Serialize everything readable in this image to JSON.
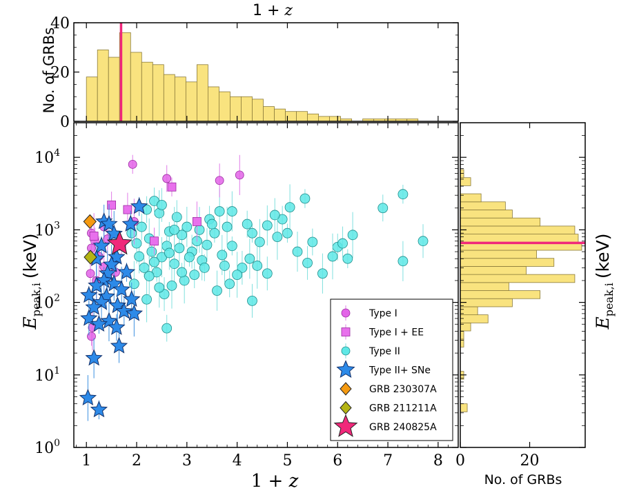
{
  "colors": {
    "hist_fill": "#f9e37f",
    "hist_edge": "#8a7a3a",
    "median_line": "#f0287a",
    "type1": "#e364e8",
    "type1ee": "#e870ec",
    "type2": "#5ee8e6",
    "sne": "#2d8ae8",
    "grb230307a": "#f59a10",
    "grb211211a": "#b4b414",
    "grb240825a": "#f0287a"
  },
  "chart_data": [
    {
      "id": "top_histogram",
      "type": "bar",
      "title": "1 + z",
      "ylabel": "No. of GRBs",
      "xlim": [
        0.75,
        8.4
      ],
      "ylim": [
        0,
        40
      ],
      "yticks": [
        0,
        20,
        40
      ],
      "bin_edges": [
        1.0,
        1.22,
        1.44,
        1.66,
        1.88,
        2.1,
        2.32,
        2.54,
        2.76,
        2.98,
        3.2,
        3.42,
        3.64,
        3.86,
        4.08,
        4.3,
        4.52,
        4.74,
        4.96,
        5.18,
        5.4,
        5.62,
        5.84,
        6.06,
        6.28,
        6.5,
        6.72,
        6.94,
        7.16,
        7.38,
        7.6
      ],
      "values": [
        18,
        29,
        26,
        36,
        28,
        24,
        23,
        19,
        18,
        16,
        23,
        14,
        12,
        10,
        10,
        9,
        6,
        5,
        4,
        4,
        3,
        2,
        2,
        1,
        0,
        1,
        1,
        1,
        1,
        1
      ],
      "median_line_x": 1.69
    },
    {
      "id": "scatter_main",
      "type": "scatter",
      "xlabel": "1 + z",
      "ylabel": "E_peak,i (keV)",
      "x_scale": "linear",
      "y_scale": "log",
      "xlim": [
        0.75,
        8.4
      ],
      "ylim": [
        1,
        30000
      ],
      "xticks": [
        1,
        2,
        3,
        4,
        5,
        6,
        7,
        8
      ],
      "ytick_labels": [
        "10^0",
        "10^1",
        "10^2",
        "10^3",
        "10^4"
      ],
      "legend_position": "lower-right",
      "series": [
        {
          "name": "Type I",
          "marker": "circle",
          "points": [
            [
              1.92,
              8000
            ],
            [
              2.6,
              5100
            ],
            [
              3.65,
              4800
            ],
            [
              4.05,
              5700
            ],
            [
              1.95,
              1300
            ],
            [
              1.1,
              900
            ],
            [
              1.17,
              700
            ],
            [
              1.1,
              560
            ],
            [
              1.25,
              430
            ],
            [
              1.35,
              310
            ],
            [
              1.08,
              250
            ],
            [
              1.5,
              330
            ],
            [
              1.58,
              260
            ],
            [
              1.2,
              200
            ],
            [
              1.12,
              45
            ],
            [
              1.1,
              34
            ],
            [
              1.35,
              1100
            ],
            [
              1.42,
              750
            ]
          ]
        },
        {
          "name": "Type I + EE",
          "marker": "square",
          "points": [
            [
              2.7,
              3900
            ],
            [
              1.5,
              2200
            ],
            [
              1.82,
              1900
            ],
            [
              3.2,
              1300
            ],
            [
              1.15,
              820
            ],
            [
              1.7,
              600
            ],
            [
              2.35,
              700
            ]
          ]
        },
        {
          "name": "Type II",
          "marker": "circle",
          "points": [
            [
              7.3,
              3100
            ],
            [
              6.9,
              2000
            ],
            [
              7.7,
              700
            ],
            [
              7.3,
              370
            ],
            [
              6.3,
              850
            ],
            [
              6.2,
              400
            ],
            [
              6.0,
              580
            ],
            [
              6.1,
              650
            ],
            [
              5.7,
              250
            ],
            [
              5.9,
              430
            ],
            [
              5.35,
              2700
            ],
            [
              5.5,
              680
            ],
            [
              5.4,
              350
            ],
            [
              5.2,
              500
            ],
            [
              5.05,
              2050
            ],
            [
              5.0,
              900
            ],
            [
              4.9,
              1400
            ],
            [
              4.75,
              1600
            ],
            [
              4.6,
              1150
            ],
            [
              4.45,
              680
            ],
            [
              4.3,
              900
            ],
            [
              4.2,
              1200
            ],
            [
              4.1,
              300
            ],
            [
              4.25,
              400
            ],
            [
              4.0,
              240
            ],
            [
              3.9,
              600
            ],
            [
              3.85,
              180
            ],
            [
              3.75,
              320
            ],
            [
              3.7,
              450
            ],
            [
              3.65,
              1800
            ],
            [
              3.55,
              900
            ],
            [
              3.45,
              1400
            ],
            [
              3.4,
              620
            ],
            [
              3.3,
              380
            ],
            [
              3.25,
              1000
            ],
            [
              3.2,
              700
            ],
            [
              3.15,
              240
            ],
            [
              3.1,
              500
            ],
            [
              3.0,
              1100
            ],
            [
              2.95,
              200
            ],
            [
              2.9,
              850
            ],
            [
              2.85,
              560
            ],
            [
              2.8,
              1500
            ],
            [
              2.75,
              340
            ],
            [
              2.7,
              170
            ],
            [
              2.65,
              950
            ],
            [
              2.6,
              600
            ],
            [
              2.55,
              130
            ],
            [
              2.5,
              420
            ],
            [
              2.45,
              1700
            ],
            [
              2.4,
              260
            ],
            [
              2.35,
              2500
            ],
            [
              2.3,
              500
            ],
            [
              2.25,
              760
            ],
            [
              2.2,
              110
            ],
            [
              2.15,
              300
            ],
            [
              2.1,
              1100
            ],
            [
              2.05,
              430
            ],
            [
              2.0,
              650
            ],
            [
              1.95,
              180
            ],
            [
              1.9,
              900
            ],
            [
              2.6,
              44
            ],
            [
              4.3,
              105
            ],
            [
              3.6,
              145
            ],
            [
              2.25,
              230
            ],
            [
              2.9,
              260
            ],
            [
              3.35,
              300
            ],
            [
              4.6,
              250
            ],
            [
              2.45,
              160
            ],
            [
              2.75,
              1000
            ],
            [
              3.5,
              1200
            ],
            [
              2.2,
              1900
            ],
            [
              2.5,
              2200
            ],
            [
              3.9,
              1800
            ],
            [
              4.4,
              320
            ],
            [
              3.05,
              420
            ],
            [
              2.35,
              360
            ],
            [
              2.65,
              480
            ],
            [
              3.8,
              1100
            ],
            [
              4.8,
              800
            ]
          ]
        },
        {
          "name": "Type II+ SNe",
          "marker": "star",
          "points": [
            [
              2.05,
              2100
            ],
            [
              1.88,
              1200
            ],
            [
              1.35,
              1300
            ],
            [
              1.45,
              1200
            ],
            [
              1.55,
              880
            ],
            [
              1.3,
              600
            ],
            [
              1.6,
              420
            ],
            [
              1.2,
              400
            ],
            [
              1.5,
              330
            ],
            [
              1.42,
              250
            ],
            [
              1.8,
              260
            ],
            [
              1.35,
              200
            ],
            [
              1.55,
              180
            ],
            [
              1.2,
              170
            ],
            [
              1.7,
              150
            ],
            [
              1.05,
              125
            ],
            [
              1.4,
              120
            ],
            [
              1.9,
              110
            ],
            [
              1.3,
              100
            ],
            [
              1.62,
              90
            ],
            [
              1.15,
              85
            ],
            [
              1.75,
              75
            ],
            [
              1.05,
              60
            ],
            [
              1.45,
              55
            ],
            [
              1.95,
              70
            ],
            [
              1.25,
              50
            ],
            [
              1.6,
              45
            ],
            [
              1.65,
              25
            ],
            [
              1.15,
              17
            ],
            [
              1.03,
              4.8
            ],
            [
              1.25,
              3.3
            ]
          ]
        },
        {
          "name": "GRB 230307A",
          "marker": "diamond",
          "points": [
            [
              1.07,
              1300
            ]
          ]
        },
        {
          "name": "GRB 211211A",
          "marker": "diamond",
          "points": [
            [
              1.08,
              420
            ]
          ]
        },
        {
          "name": "GRB 240825A",
          "marker": "star",
          "points": [
            [
              1.66,
              640
            ]
          ]
        }
      ]
    },
    {
      "id": "right_histogram",
      "type": "bar",
      "orientation": "horizontal",
      "xlabel": "No. of GRBs",
      "ylabel": "E_peak,i (keV)",
      "xlim": [
        0,
        36
      ],
      "xticks": [
        0,
        20
      ],
      "ylim": [
        1,
        30000
      ],
      "y_scale": "log",
      "bin_edges": [
        3.1,
        4.0,
        5.2,
        6.7,
        8.7,
        11.2,
        14.5,
        18.7,
        24.2,
        31.2,
        40.4,
        52.1,
        67.4,
        87.0,
        112.5,
        145.3,
        187.7,
        242.5,
        313.3,
        404.8,
        523.0,
        675.7,
        873.0,
        1128,
        1457,
        1882,
        2432,
        3142,
        4059,
        5244,
        6776
      ],
      "values": [
        2,
        0,
        0,
        0,
        1,
        0,
        0,
        0,
        1,
        1,
        3,
        8,
        5,
        15,
        23,
        14,
        33,
        19,
        27,
        22,
        35,
        34,
        33,
        23,
        15,
        13,
        6,
        0,
        3,
        1
      ],
      "median_line_y": 660
    }
  ],
  "labels": {
    "top_title_a": "1 + ",
    "top_title_b": "z",
    "top_ylabel": "No. of GRBs",
    "main_xlabel_a": "1 + ",
    "main_xlabel_b": "z",
    "ylabel_e": "E",
    "ylabel_sub": "peak,i",
    "ylabel_unit": "(keV)",
    "right_xlabel": "No. of GRBs"
  }
}
